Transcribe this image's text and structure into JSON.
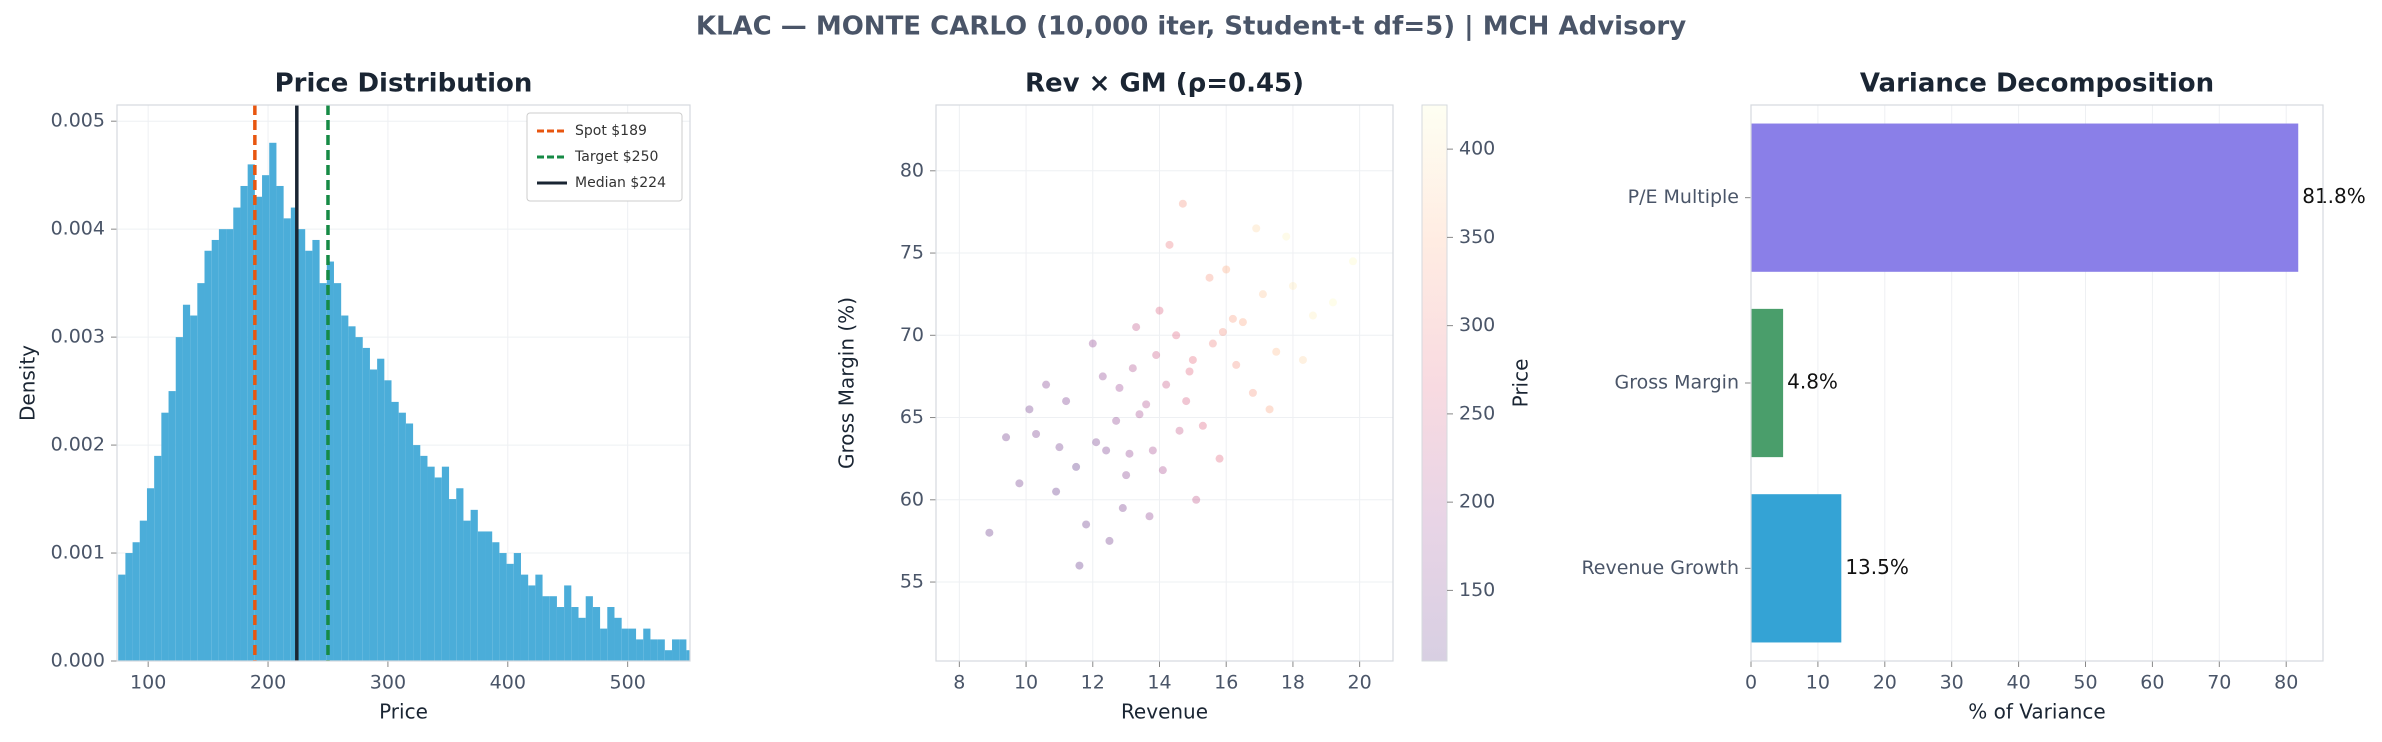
{
  "title": "KLAC — MONTE CARLO (10,000 iter, Student-t df=5) | MCH Advisory",
  "title_color": "#0f8ac9",
  "chart_data": [
    {
      "type": "histogram",
      "title": "Price Distribution",
      "x_label": "Price",
      "y_label": "Density",
      "color": "#4badd9",
      "grid": true,
      "bins": [
        75,
        81,
        87,
        93,
        99,
        105,
        111,
        117,
        123,
        129,
        135,
        141,
        147,
        153,
        159,
        165,
        171,
        177,
        183,
        189,
        195,
        201,
        207,
        213,
        219,
        225,
        231,
        237,
        243,
        249,
        255,
        261,
        267,
        273,
        279,
        285,
        291,
        297,
        303,
        309,
        315,
        321,
        327,
        333,
        339,
        345,
        351,
        357,
        363,
        369,
        375,
        381,
        387,
        393,
        399,
        405,
        411,
        417,
        423,
        429,
        435,
        441,
        447,
        453,
        459,
        465,
        471,
        477,
        483,
        489,
        495,
        501,
        507,
        513,
        519,
        525,
        531,
        537,
        543,
        549,
        555
      ],
      "values": [
        0.0008,
        0.001,
        0.0011,
        0.0013,
        0.0016,
        0.0019,
        0.0023,
        0.0025,
        0.003,
        0.0033,
        0.0032,
        0.0035,
        0.0038,
        0.0039,
        0.004,
        0.004,
        0.0042,
        0.0044,
        0.0046,
        0.0043,
        0.0045,
        0.0048,
        0.0044,
        0.0041,
        0.0042,
        0.004,
        0.0038,
        0.0039,
        0.0035,
        0.0037,
        0.0035,
        0.0032,
        0.0031,
        0.003,
        0.0029,
        0.0027,
        0.0028,
        0.0026,
        0.0024,
        0.0023,
        0.0022,
        0.002,
        0.0019,
        0.0018,
        0.0017,
        0.0018,
        0.0015,
        0.0016,
        0.0013,
        0.0014,
        0.0012,
        0.0012,
        0.0011,
        0.001,
        0.0009,
        0.001,
        0.0008,
        0.0007,
        0.0008,
        0.0006,
        0.0006,
        0.0005,
        0.0007,
        0.0005,
        0.0004,
        0.0006,
        0.0005,
        0.0003,
        0.0005,
        0.0004,
        0.0003,
        0.0003,
        0.0002,
        0.0003,
        0.0002,
        0.0002,
        0.0001,
        0.0002,
        0.0002,
        0.0001
      ],
      "lines": [
        {
          "name": "Spot $189",
          "value": 189,
          "color": "#e8560f",
          "dashed": true
        },
        {
          "name": "Target $250",
          "value": 250,
          "color": "#168a45",
          "dashed": true
        },
        {
          "name": "Median $224",
          "value": 224,
          "color": "#1a2533",
          "dashed": false
        }
      ],
      "legend": "upper right",
      "xlim": [
        74,
        552
      ],
      "xticks": [
        100,
        200,
        300,
        400,
        500
      ],
      "ylim": [
        0,
        0.00515
      ],
      "yticks": [
        {
          "value": 0,
          "label": "0.000"
        },
        {
          "value": 0.001,
          "label": "0.001"
        },
        {
          "value": 0.002,
          "label": "0.002"
        },
        {
          "value": 0.003,
          "label": "0.003"
        },
        {
          "value": 0.004,
          "label": "0.004"
        },
        {
          "value": 0.005,
          "label": "0.005"
        }
      ]
    },
    {
      "type": "scatter",
      "title": "Rev × GM (ρ=0.45)",
      "x_label": "Revenue",
      "y_label": "Gross Margin (%)",
      "colorbar_label": "Price",
      "colormap": [
        "#3b0f70",
        "#8c2981",
        "#de4968",
        "#fe9f6d",
        "#fcfdbf"
      ],
      "alpha": 0.3,
      "grid": true,
      "x": [
        12.1,
        13.4,
        14.2,
        15.0,
        11.5,
        13.0,
        16.2,
        14.8,
        12.7,
        10.9,
        15.6,
        17.1,
        13.8,
        12.3,
        14.5,
        16.8,
        11.8,
        13.2,
        15.3,
        18.0,
        9.8,
        12.9,
        14.0,
        16.0,
        17.5,
        13.6,
        11.2,
        15.8,
        14.3,
        12.5,
        10.3,
        16.5,
        18.6,
        13.1,
        14.9,
        12.0,
        15.1,
        17.8,
        11.0,
        13.9,
        19.2,
        8.9,
        14.6,
        16.3,
        12.8,
        10.6,
        15.5,
        17.3,
        13.3,
        14.1,
        19.8,
        9.4,
        11.6,
        16.9,
        15.9,
        12.4,
        13.7,
        18.3,
        10.1,
        14.7
      ],
      "y": [
        63.5,
        65.2,
        67.0,
        68.5,
        62.0,
        61.5,
        71.0,
        66.0,
        64.8,
        60.5,
        69.5,
        72.5,
        63.0,
        67.5,
        70.0,
        66.5,
        58.5,
        68.0,
        64.5,
        73.0,
        61.0,
        59.5,
        71.5,
        74.0,
        69.0,
        65.8,
        66.0,
        62.5,
        75.5,
        57.5,
        64.0,
        70.8,
        71.2,
        62.8,
        67.8,
        69.5,
        60.0,
        76.0,
        63.2,
        68.8,
        72.0,
        58.0,
        64.2,
        68.2,
        66.8,
        67.0,
        73.5,
        65.5,
        70.5,
        61.8,
        74.5,
        63.8,
        56.0,
        76.5,
        70.2,
        63.0,
        59.0,
        68.5,
        65.5,
        78.0
      ],
      "c": [
        142,
        198,
        237,
        274,
        115,
        162,
        331,
        252,
        171,
        125,
        301,
        371,
        199,
        173,
        265,
        325,
        130,
        208,
        260,
        406,
        140,
        147,
        257,
        342,
        364,
        209,
        150,
        266,
        291,
        135,
        145,
        340,
        410,
        174,
        266,
        175,
        226,
        415,
        140,
        238,
        420,
        130,
        234,
        317,
        187,
        155,
        321,
        336,
        227,
        202,
        420,
        135,
        125,
        388,
        315,
        150,
        172,
        389,
        140,
        320
      ],
      "clim": [
        110,
        425
      ],
      "cticks": [
        150,
        200,
        250,
        300,
        350,
        400
      ],
      "xlim": [
        7.3,
        21
      ],
      "xticks": [
        8,
        10,
        12,
        14,
        16,
        18,
        20
      ],
      "ylim": [
        50.2,
        84
      ],
      "yticks": [
        55,
        60,
        65,
        70,
        75,
        80
      ]
    },
    {
      "type": "barh",
      "title": "Variance Decomposition",
      "x_label": "% of Variance",
      "grid": true,
      "categories": [
        "Revenue Growth",
        "Gross Margin",
        "P/E Multiple"
      ],
      "values": [
        13.5,
        4.8,
        81.8
      ],
      "value_labels": [
        "13.5%",
        "4.8%",
        "81.8%"
      ],
      "colors": [
        "#34a3d5",
        "#4a9e6b",
        "#8a7fe8"
      ],
      "xlim": [
        0,
        85.5
      ],
      "xticks": [
        0,
        10,
        20,
        30,
        40,
        50,
        60,
        70,
        80
      ]
    }
  ]
}
